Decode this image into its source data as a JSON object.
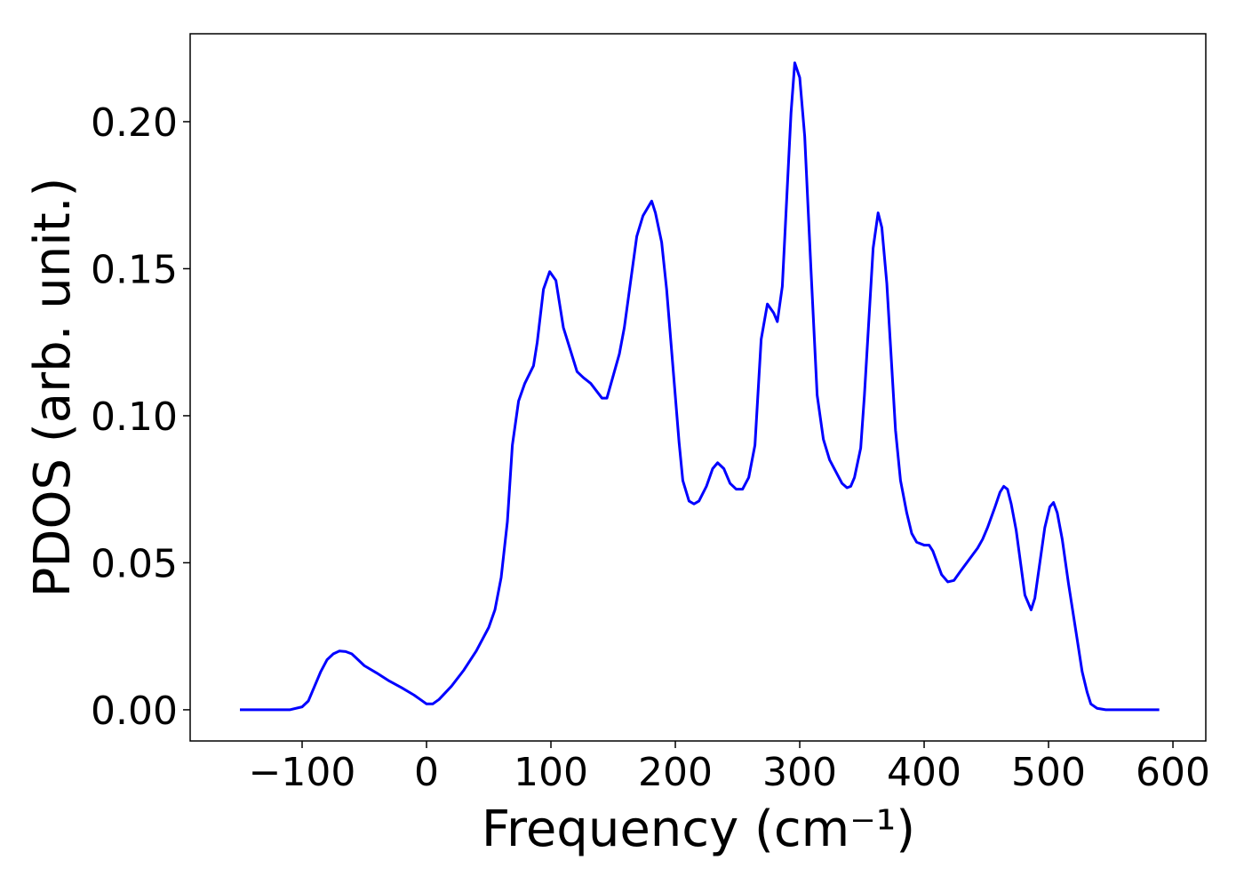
{
  "chart_data": {
    "type": "line",
    "xlabel": "Frequency (cm⁻¹)",
    "ylabel": "PDOS (arb. unit.)",
    "xlim": [
      -190,
      626.4
    ],
    "ylim": [
      -0.0106,
      0.2299
    ],
    "xticks": [
      {
        "value": -100,
        "label": "−100"
      },
      0,
      100,
      200,
      300,
      400,
      500,
      600
    ],
    "yticks": [
      {
        "value": 0,
        "label": "0.00"
      },
      {
        "value": 0.05,
        "label": "0.05"
      },
      {
        "value": 0.1,
        "label": "0.10"
      },
      {
        "value": 0.15,
        "label": "0.15"
      },
      {
        "value": 0.2,
        "label": "0.20"
      }
    ],
    "series": [
      {
        "color": "#0000ff",
        "x": [
          -150,
          -110,
          -100,
          -95,
          -90,
          -85,
          -80,
          -75,
          -70,
          -65,
          -60,
          -55,
          -50,
          -40,
          -30,
          -20,
          -10,
          -5,
          0,
          5,
          10,
          20,
          30,
          40,
          50,
          55,
          60,
          65,
          69,
          74,
          79,
          86,
          89,
          94,
          99,
          104,
          110,
          121,
          126,
          132,
          141,
          145,
          155,
          159,
          169,
          174,
          181,
          184,
          189,
          193,
          203,
          206,
          211,
          215,
          219,
          225,
          230,
          234,
          239,
          244,
          249,
          254,
          259,
          264,
          269,
          274,
          279,
          282,
          286,
          293,
          296,
          300,
          304,
          309,
          314,
          319,
          324,
          329,
          334,
          338,
          341,
          344,
          349,
          352,
          359,
          363,
          366,
          370,
          377,
          381,
          386,
          390,
          394,
          400,
          404,
          407,
          414,
          419,
          424,
          429,
          436,
          443,
          447,
          451,
          457,
          461,
          464,
          467,
          470,
          474,
          481,
          486,
          489,
          493,
          497,
          501,
          504,
          507,
          511,
          516,
          523,
          527,
          531,
          534,
          539,
          546,
          589
        ],
        "values": [
          0,
          0,
          0.001,
          0.003,
          0.008,
          0.013,
          0.017,
          0.019,
          0.02,
          0.0198,
          0.019,
          0.017,
          0.015,
          0.0125,
          0.0098,
          0.0075,
          0.005,
          0.0035,
          0.002,
          0.002,
          0.0035,
          0.008,
          0.0135,
          0.02,
          0.028,
          0.034,
          0.045,
          0.064,
          0.09,
          0.105,
          0.111,
          0.117,
          0.125,
          0.143,
          0.149,
          0.146,
          0.13,
          0.115,
          0.113,
          0.111,
          0.106,
          0.106,
          0.121,
          0.13,
          0.161,
          0.168,
          0.173,
          0.169,
          0.159,
          0.143,
          0.091,
          0.078,
          0.071,
          0.07,
          0.071,
          0.076,
          0.082,
          0.084,
          0.082,
          0.077,
          0.075,
          0.075,
          0.079,
          0.09,
          0.126,
          0.138,
          0.135,
          0.132,
          0.144,
          0.203,
          0.22,
          0.215,
          0.195,
          0.15,
          0.107,
          0.092,
          0.085,
          0.081,
          0.077,
          0.0755,
          0.076,
          0.079,
          0.089,
          0.107,
          0.157,
          0.169,
          0.164,
          0.145,
          0.095,
          0.078,
          0.067,
          0.06,
          0.057,
          0.056,
          0.056,
          0.054,
          0.046,
          0.0435,
          0.044,
          0.047,
          0.051,
          0.055,
          0.058,
          0.062,
          0.069,
          0.074,
          0.076,
          0.075,
          0.07,
          0.061,
          0.039,
          0.034,
          0.038,
          0.05,
          0.062,
          0.069,
          0.0705,
          0.067,
          0.058,
          0.043,
          0.024,
          0.013,
          0.006,
          0.002,
          0.0005,
          0,
          0
        ]
      }
    ]
  }
}
